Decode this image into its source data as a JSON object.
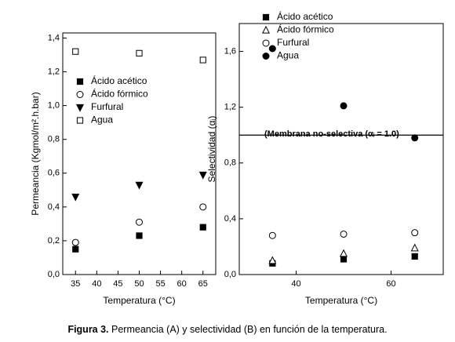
{
  "chart_data": [
    {
      "type": "scatter",
      "xlabel": "Temperatura (°C)",
      "ylabel": "Permeancia (Kgmol/m².h.bar)",
      "xlim": [
        32,
        68
      ],
      "xticks": [
        35,
        40,
        45,
        50,
        55,
        60,
        65
      ],
      "ylim": [
        0,
        1.43
      ],
      "yticks": [
        {
          "value": 0,
          "label": "0,0"
        },
        {
          "value": 0.2,
          "label": "0,2"
        },
        {
          "value": 0.4,
          "label": "0,4"
        },
        {
          "value": 0.6,
          "label": "0,6"
        },
        {
          "value": 0.8,
          "label": "0,8"
        },
        {
          "value": 1.0,
          "label": "1,0"
        },
        {
          "value": 1.2,
          "label": "1,2"
        },
        {
          "value": 1.4,
          "label": "1,4"
        }
      ],
      "legend": "upper-left",
      "x": [
        35,
        50,
        65
      ],
      "series": [
        {
          "name": "Ácido acético",
          "color": "#000000",
          "marker": "square",
          "filled": true,
          "values": [
            0.15,
            0.23,
            0.28
          ]
        },
        {
          "name": "Ácido fórmico",
          "color": "#000000",
          "marker": "circle",
          "filled": false,
          "values": [
            0.19,
            0.31,
            0.4
          ]
        },
        {
          "name": "Furfural",
          "color": "#000000",
          "marker": "triangle-down",
          "filled": true,
          "values": [
            0.46,
            0.53,
            0.59
          ]
        },
        {
          "name": "Agua",
          "color": "#000000",
          "marker": "square",
          "filled": false,
          "values": [
            1.32,
            1.31,
            1.27
          ]
        }
      ]
    },
    {
      "type": "scatter",
      "xlabel": "Temperatura (°C)",
      "ylabel": "Selectividad (αᵢ)",
      "xlim": [
        28,
        71
      ],
      "xticks": [
        40,
        60
      ],
      "ylim": [
        0,
        1.8
      ],
      "yticks": [
        {
          "value": 0,
          "label": "0,0"
        },
        {
          "value": 0.4,
          "label": "0,4"
        },
        {
          "value": 0.8,
          "label": "0,8"
        },
        {
          "value": 1.2,
          "label": "1,2"
        },
        {
          "value": 1.6,
          "label": "1,6"
        }
      ],
      "legend": "top",
      "hline": 1.0,
      "annotation": "(Membrana no-selectiva (αᵢ = 1.0)",
      "x": [
        35,
        50,
        65
      ],
      "series": [
        {
          "name": "Ácido acético",
          "color": "#000000",
          "marker": "square",
          "filled": true,
          "values": [
            0.08,
            0.11,
            0.13
          ]
        },
        {
          "name": "Ácido fórmico",
          "color": "#000000",
          "marker": "triangle-up",
          "filled": false,
          "values": [
            0.1,
            0.15,
            0.19
          ]
        },
        {
          "name": "Furfural",
          "color": "#000000",
          "marker": "circle",
          "filled": false,
          "values": [
            0.28,
            0.29,
            0.3
          ]
        },
        {
          "name": "Agua",
          "color": "#000000",
          "marker": "circle",
          "filled": true,
          "values": [
            1.62,
            1.21,
            0.98
          ]
        }
      ]
    }
  ],
  "caption": {
    "label": "Figura 3.",
    "text": " Permeancia (A) y selectividad (B) en función de la temperatura."
  }
}
